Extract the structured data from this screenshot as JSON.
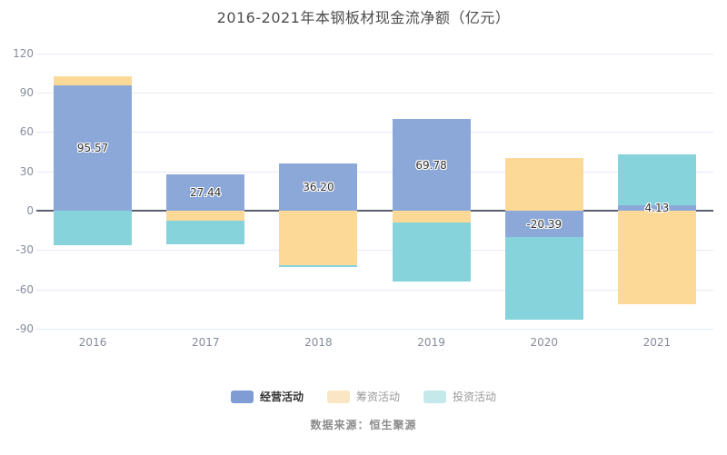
{
  "title": "2016-2021年本钢板材现金流净额（亿元）",
  "source": "数据来源：恒生聚源",
  "legend": {
    "items": [
      {
        "label": "经营活动",
        "swatch": "#7f9cd4",
        "text_color": "#333333",
        "primary": true
      },
      {
        "label": "筹资活动",
        "swatch": "#fae6c4",
        "text_color": "#999999",
        "primary": false
      },
      {
        "label": "投资活动",
        "swatch": "#c5e8ea",
        "text_color": "#999999",
        "primary": false
      }
    ]
  },
  "colors": {
    "operating": "#8ca8d8",
    "financing": "#fdd998",
    "investing": "#86d3dc",
    "gridline": "#e4e9f4",
    "zero_line": "#5a6070",
    "axis_text": "#868c9c",
    "title_text": "#4d4d4d"
  },
  "chart_data": {
    "type": "bar",
    "stacked": true,
    "title": "2016-2021年本钢板材现金流净额（亿元）",
    "xlabel": "",
    "ylabel": "亿元",
    "categories": [
      "2016",
      "2017",
      "2018",
      "2019",
      "2020",
      "2021"
    ],
    "series": [
      {
        "name": "经营活动",
        "color": "#8ca8d8",
        "values": [
          95.57,
          27.44,
          36.2,
          69.78,
          -20.39,
          4.13
        ],
        "labels": [
          "95.57",
          "27.44",
          "36.20",
          "69.78",
          "-20.39",
          "4.13"
        ]
      },
      {
        "name": "筹资活动",
        "color": "#fdd998",
        "values": [
          7.2,
          -7.6,
          -41.5,
          -8.8,
          40.2,
          -71.1
        ]
      },
      {
        "name": "投资活动",
        "color": "#86d3dc",
        "values": [
          -26.2,
          -18.1,
          -1.6,
          -45.2,
          -62.5,
          38.7
        ]
      }
    ],
    "ylim": [
      -90,
      120
    ],
    "yticks": [
      120,
      90,
      60,
      30,
      0,
      -30,
      -60,
      -90
    ],
    "grid": true,
    "legend_position": "bottom"
  }
}
